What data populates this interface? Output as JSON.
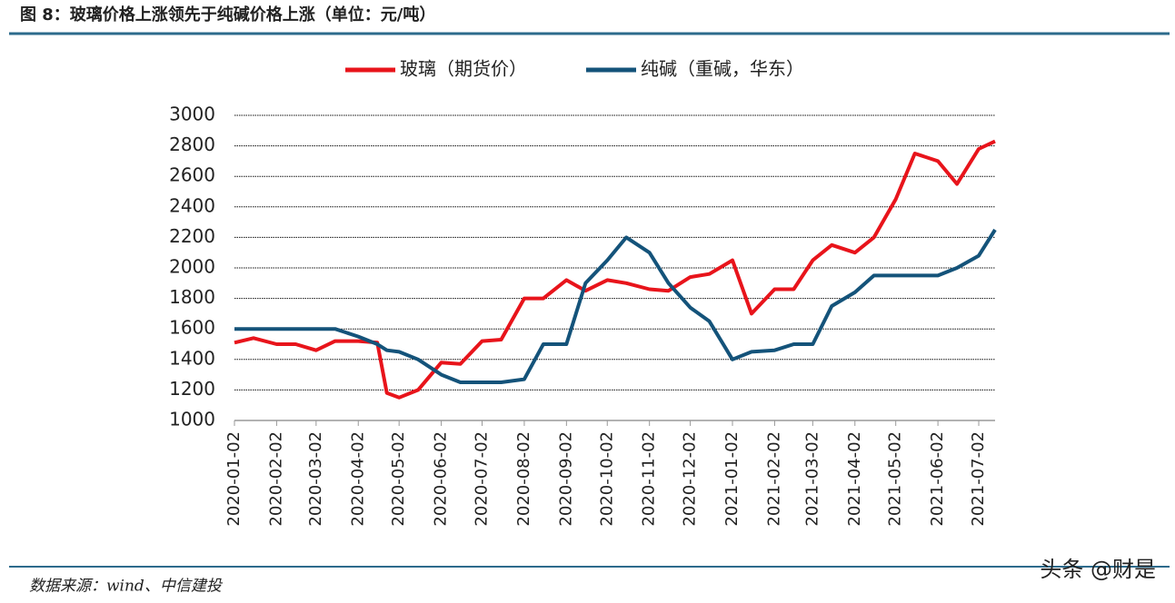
{
  "header": {
    "title": "图 8：玻璃价格上涨领先于纯碱价格上涨（单位：元/吨）"
  },
  "chart_data": {
    "type": "line",
    "x": [
      "2020-01-02",
      "2020-01-16",
      "2020-02-02",
      "2020-02-16",
      "2020-03-02",
      "2020-03-16",
      "2020-04-02",
      "2020-04-16",
      "2020-04-23",
      "2020-05-02",
      "2020-05-16",
      "2020-06-02",
      "2020-06-16",
      "2020-07-02",
      "2020-07-16",
      "2020-08-02",
      "2020-08-16",
      "2020-09-02",
      "2020-09-16",
      "2020-10-02",
      "2020-10-16",
      "2020-11-02",
      "2020-11-16",
      "2020-12-02",
      "2020-12-16",
      "2021-01-02",
      "2021-01-16",
      "2021-02-02",
      "2021-02-16",
      "2021-03-02",
      "2021-03-16",
      "2021-04-02",
      "2021-04-16",
      "2021-05-02",
      "2021-05-16",
      "2021-06-02",
      "2021-06-16",
      "2021-07-02",
      "2021-07-14"
    ],
    "series": [
      {
        "name": "玻璃（期货价）",
        "color": "#e8141b",
        "values": [
          1510,
          1540,
          1500,
          1500,
          1460,
          1520,
          1520,
          1510,
          1180,
          1150,
          1200,
          1380,
          1370,
          1520,
          1530,
          1800,
          1800,
          1920,
          1850,
          1920,
          1900,
          1860,
          1850,
          1940,
          1960,
          2050,
          1700,
          1860,
          1860,
          2050,
          2150,
          2100,
          2200,
          2450,
          2750,
          2700,
          2550,
          2780,
          2830
        ]
      },
      {
        "name": "纯碱（重碱，华东）",
        "color": "#14537a",
        "values": [
          1600,
          1600,
          1600,
          1600,
          1600,
          1600,
          1550,
          1500,
          1460,
          1450,
          1400,
          1300,
          1250,
          1250,
          1250,
          1270,
          1500,
          1500,
          1900,
          2050,
          2200,
          2100,
          1900,
          1740,
          1650,
          1400,
          1450,
          1460,
          1500,
          1500,
          1750,
          1840,
          1950,
          1950,
          1950,
          1950,
          2000,
          2080,
          2250
        ]
      }
    ],
    "xlim": [
      "2020-01-02",
      "2021-07-14"
    ],
    "xticks": [
      "2020-01-02",
      "2020-02-02",
      "2020-03-02",
      "2020-04-02",
      "2020-05-02",
      "2020-06-02",
      "2020-07-02",
      "2020-08-02",
      "2020-09-02",
      "2020-10-02",
      "2020-11-02",
      "2020-12-02",
      "2021-01-02",
      "2021-02-02",
      "2021-03-02",
      "2021-04-02",
      "2021-05-02",
      "2021-06-02",
      "2021-07-02"
    ],
    "ylim": [
      1000,
      3000
    ],
    "yticks": [
      1000,
      1200,
      1400,
      1600,
      1800,
      2000,
      2200,
      2400,
      2600,
      2800,
      3000
    ],
    "grid": true,
    "legend": "top"
  },
  "footer": {
    "source": "数据来源：wind、中信建投",
    "watermark": "头条 @财是"
  }
}
